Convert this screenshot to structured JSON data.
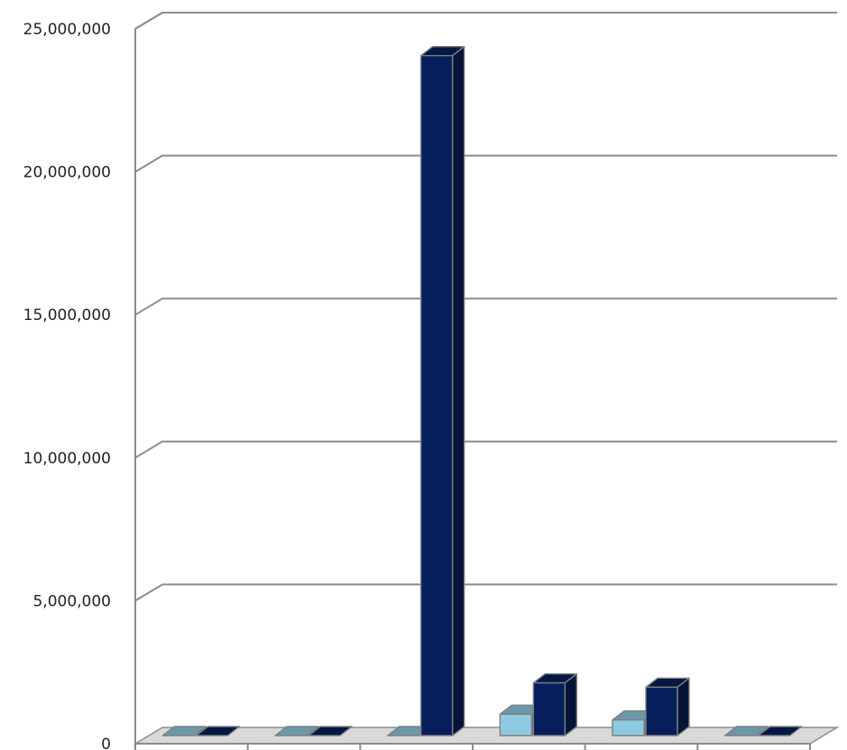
{
  "chart_data": {
    "type": "bar",
    "style": "3d-clustered-column",
    "title": "",
    "xlabel": "",
    "ylabel": "",
    "categories": [
      "",
      "",
      "",
      "",
      "",
      ""
    ],
    "ylim": [
      0,
      25000000
    ],
    "yticks": [
      0,
      5000000,
      10000000,
      15000000,
      20000000,
      25000000
    ],
    "ytick_labels": [
      "0",
      "5,000,000",
      "10,000,000",
      "15,000,000",
      "20,000,000",
      "25,000,000"
    ],
    "grid": true,
    "legend": "none",
    "series": [
      {
        "color": "#8fcbe0",
        "values": [
          0,
          0,
          0,
          750000,
          550000,
          0
        ]
      },
      {
        "color": "#061f5c",
        "values": [
          0,
          0,
          23900000,
          1850000,
          1700000,
          0
        ]
      }
    ]
  }
}
